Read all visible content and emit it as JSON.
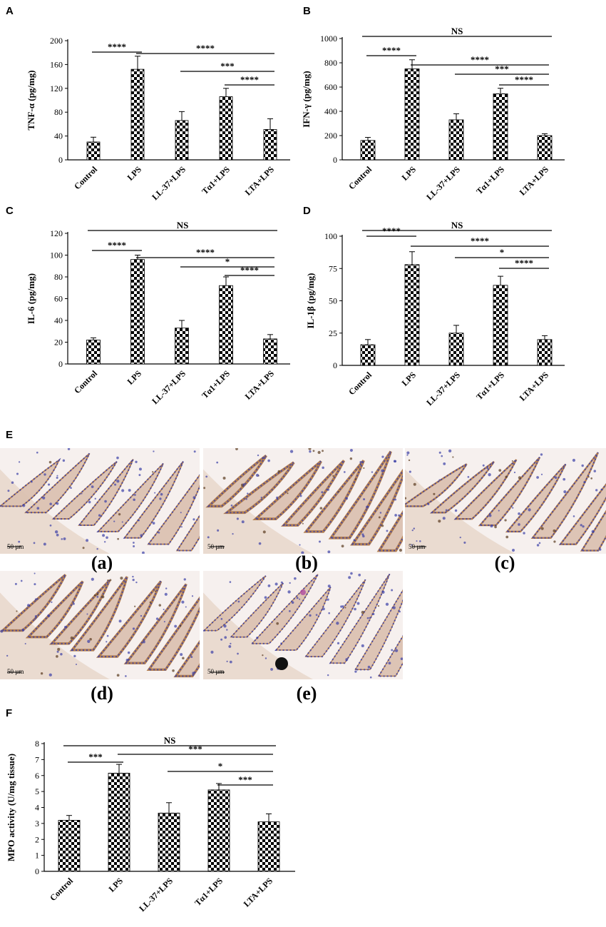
{
  "panel_letters": [
    "A",
    "B",
    "C",
    "D",
    "E",
    "F"
  ],
  "chart_data": [
    {
      "panel": "A",
      "type": "bar",
      "categories": [
        "Control",
        "LPS",
        "LL-37+LPS",
        "Tα1+LPS",
        "LTA+LPS"
      ],
      "values": [
        30,
        152,
        66,
        106,
        51
      ],
      "errors": [
        8,
        22,
        15,
        14,
        18
      ],
      "ylabel": "TNF-α (pg/mg)",
      "ylim": [
        0,
        200
      ],
      "yticks": [
        0,
        40,
        80,
        120,
        160,
        200
      ],
      "significance": [
        {
          "from": 0,
          "to": 1,
          "label": "****"
        },
        {
          "from": 1,
          "to": 4,
          "label": "****"
        },
        {
          "from": 2,
          "to": 4,
          "label": "***"
        },
        {
          "from": 3,
          "to": 4,
          "label": "****"
        }
      ]
    },
    {
      "panel": "B",
      "type": "bar",
      "categories": [
        "Control",
        "LPS",
        "LL-37+LPS",
        "Tα1+LPS",
        "LTA+LPS"
      ],
      "values": [
        160,
        750,
        330,
        545,
        200
      ],
      "errors": [
        25,
        75,
        50,
        45,
        15
      ],
      "ylabel": "IFN-γ (pg/mg)",
      "ylim": [
        0,
        1000
      ],
      "yticks": [
        0,
        200,
        400,
        600,
        800,
        1000
      ],
      "significance": [
        {
          "from": 0,
          "to": 4,
          "label": "NS"
        },
        {
          "from": 0,
          "to": 1,
          "label": "****"
        },
        {
          "from": 1,
          "to": 4,
          "label": "****"
        },
        {
          "from": 2,
          "to": 4,
          "label": "***"
        },
        {
          "from": 3,
          "to": 4,
          "label": "****"
        }
      ]
    },
    {
      "panel": "C",
      "type": "bar",
      "categories": [
        "Control",
        "LPS",
        "LL-37+LPS",
        "Tα1+LPS",
        "LTA+LPS"
      ],
      "values": [
        22,
        96,
        33,
        72,
        23
      ],
      "errors": [
        2,
        4,
        7,
        8,
        4
      ],
      "ylabel": "IL-6 (pg/mg)",
      "ylim": [
        0,
        120
      ],
      "yticks": [
        0,
        20,
        40,
        60,
        80,
        100,
        120
      ],
      "significance": [
        {
          "from": 0,
          "to": 4,
          "label": "NS"
        },
        {
          "from": 0,
          "to": 1,
          "label": "****"
        },
        {
          "from": 1,
          "to": 4,
          "label": "****"
        },
        {
          "from": 2,
          "to": 4,
          "label": "*"
        },
        {
          "from": 3,
          "to": 4,
          "label": "****"
        }
      ]
    },
    {
      "panel": "D",
      "type": "bar",
      "categories": [
        "Control",
        "LPS",
        "LL-37+LPS",
        "Tα1+LPS",
        "LTA+LPS"
      ],
      "values": [
        16,
        78,
        25,
        62,
        20
      ],
      "errors": [
        4,
        10,
        6,
        7,
        3
      ],
      "ylabel": "IL-1β (pg/mg)",
      "ylim": [
        0,
        100
      ],
      "yticks": [
        0,
        25,
        50,
        75,
        100
      ],
      "significance": [
        {
          "from": 0,
          "to": 4,
          "label": "NS"
        },
        {
          "from": 0,
          "to": 1,
          "label": "****"
        },
        {
          "from": 1,
          "to": 4,
          "label": "****"
        },
        {
          "from": 2,
          "to": 4,
          "label": "*"
        },
        {
          "from": 3,
          "to": 4,
          "label": "****"
        }
      ]
    },
    {
      "panel": "F",
      "type": "bar",
      "categories": [
        "Control",
        "LPS",
        "LL-37+LPS",
        "Tα1+LPS",
        "LTA+LPS"
      ],
      "values": [
        3.2,
        6.15,
        3.65,
        5.1,
        3.1
      ],
      "errors": [
        0.3,
        0.55,
        0.65,
        0.4,
        0.5
      ],
      "ylabel": "MPO activity (U/mg tissue)",
      "ylim": [
        0,
        8
      ],
      "yticks": [
        0,
        1,
        2,
        3,
        4,
        5,
        6,
        7,
        8
      ],
      "significance": [
        {
          "from": 0,
          "to": 4,
          "label": "NS"
        },
        {
          "from": 0,
          "to": 1,
          "label": "***"
        },
        {
          "from": 1,
          "to": 4,
          "label": "***"
        },
        {
          "from": 2,
          "to": 4,
          "label": "*"
        },
        {
          "from": 3,
          "to": 4,
          "label": "***"
        }
      ]
    }
  ],
  "histology": {
    "captions": [
      "(a)",
      "(b)",
      "(c)",
      "(d)",
      "(e)"
    ],
    "scale_bar_label": "50 µm",
    "colors": {
      "background": "#f6f0ee",
      "nuclei": "#3b3fa6",
      "stain": "#b07a4a"
    }
  },
  "bar_fill": {
    "checker_dark": "#000000",
    "checker_light": "#ffffff"
  }
}
